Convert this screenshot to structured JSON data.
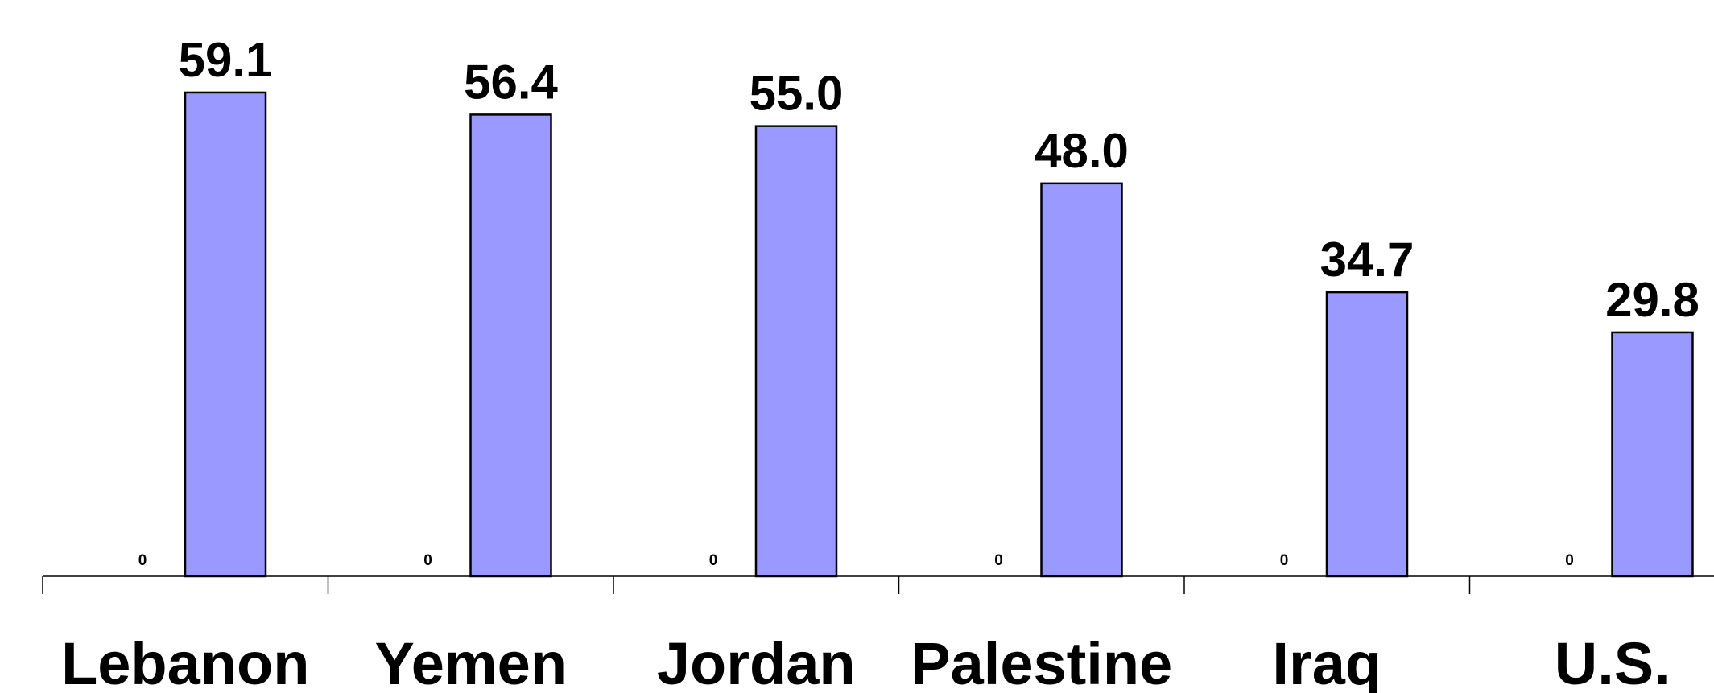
{
  "chart_data": {
    "type": "bar",
    "categories": [
      "Lebanon",
      "Yemen",
      "Jordan",
      "Palestine",
      "Iraq",
      "U.S."
    ],
    "series": [
      {
        "values": [
          0,
          0,
          0,
          0,
          0,
          0
        ],
        "data_labels": [
          "0",
          "0",
          "0",
          "0",
          "0",
          "0"
        ]
      },
      {
        "values": [
          59.1,
          56.4,
          55.0,
          48.0,
          34.7,
          29.8
        ],
        "data_labels": [
          "59.1",
          "56.4",
          "55.0",
          "48.0",
          "34.7",
          "29.8"
        ],
        "color": "#9999ff"
      }
    ],
    "title": "",
    "xlabel": "",
    "ylabel": "",
    "ylim": [
      0,
      64
    ],
    "grid": false,
    "legend": "none"
  }
}
